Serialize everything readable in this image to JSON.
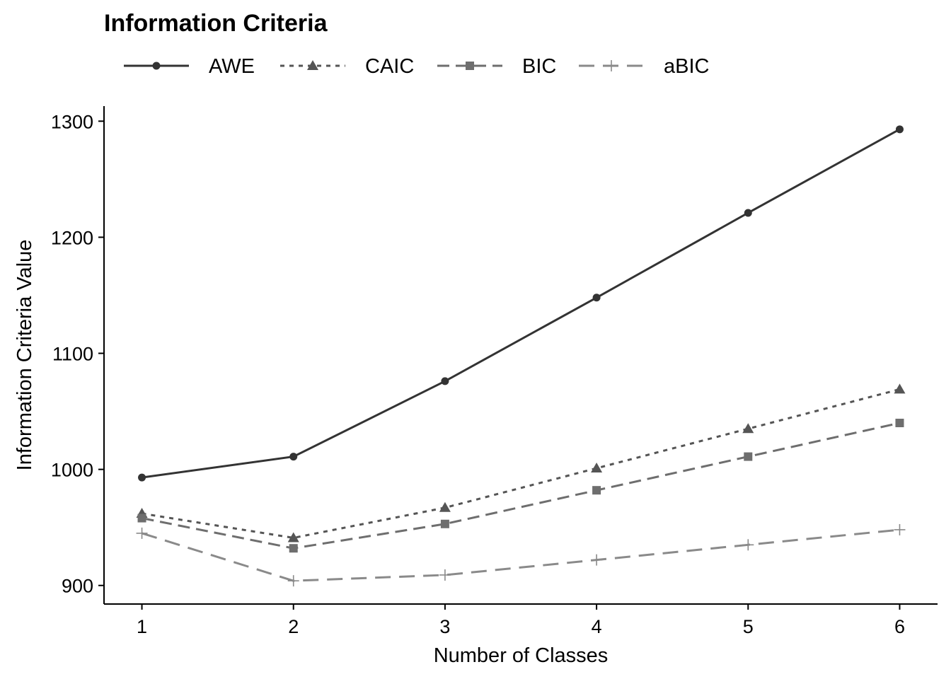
{
  "chart_data": {
    "type": "line",
    "title": "Information Criteria",
    "xlabel": "Number of Classes",
    "ylabel": "Information Criteria Value",
    "x": [
      1,
      2,
      3,
      4,
      5,
      6
    ],
    "xticks": [
      "1",
      "2",
      "3",
      "4",
      "5",
      "6"
    ],
    "yticks": [
      900,
      1000,
      1100,
      1200,
      1300
    ],
    "xlim": [
      0.75,
      6.25
    ],
    "ylim": [
      884,
      1313
    ],
    "grid": false,
    "legend_position": "top",
    "series": [
      {
        "name": "AWE",
        "values": [
          993,
          1011,
          1076,
          1148,
          1221,
          1293
        ],
        "color": "#333333",
        "marker": "circle",
        "line": "solid"
      },
      {
        "name": "CAIC",
        "values": [
          962,
          941,
          967,
          1001,
          1035,
          1069
        ],
        "color": "#555555",
        "marker": "triangle",
        "line": "dotted"
      },
      {
        "name": "BIC",
        "values": [
          958,
          932,
          953,
          982,
          1011,
          1040
        ],
        "color": "#6e6e6e",
        "marker": "square",
        "line": "dashed"
      },
      {
        "name": "aBIC",
        "values": [
          945,
          904,
          909,
          922,
          935,
          948
        ],
        "color": "#8a8a8a",
        "marker": "plus",
        "line": "longdash"
      }
    ]
  }
}
